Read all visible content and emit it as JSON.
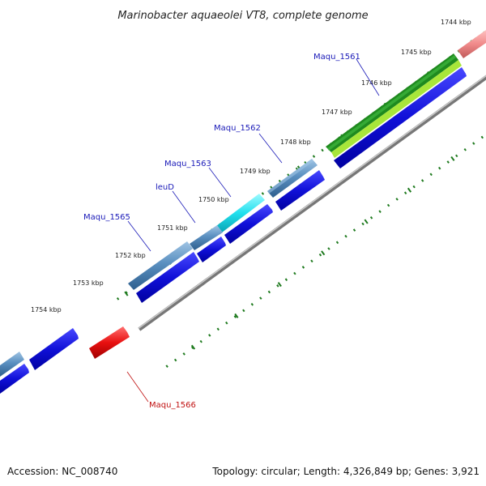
{
  "title": "Marinobacter aquaeolei VT8, complete genome",
  "footer": {
    "accession": "Accession: NC_008740",
    "summary": "Topology: circular; Length: 4,326,849 bp; Genes: 3,921"
  },
  "kbp_ticks": [
    "1744 kbp",
    "1745 kbp",
    "1746 kbp",
    "1747 kbp",
    "1748 kbp",
    "1749 kbp",
    "1750 kbp",
    "1751 kbp",
    "1752 kbp",
    "1753 kbp",
    "1754 kbp"
  ],
  "gene_labels": {
    "maqu_1561": "Maqu_1561",
    "maqu_1562": "Maqu_1562",
    "maqu_1563": "Maqu_1563",
    "leud": "leuD",
    "maqu_1565": "Maqu_1565",
    "maqu_1566": "Maqu_1566"
  },
  "colors": {
    "backbone": "#8a8a8a",
    "tick": "#1e7a1e",
    "cds": "#1010d8",
    "gene_steelblue": "#5a8fc0",
    "gene_cyan": "#22e0ee",
    "gene_green_dark": "#1f8a1f",
    "gene_green_light": "#a8e63a",
    "gene_pink": "#f08a8a",
    "gene_red": "#e81010"
  }
}
